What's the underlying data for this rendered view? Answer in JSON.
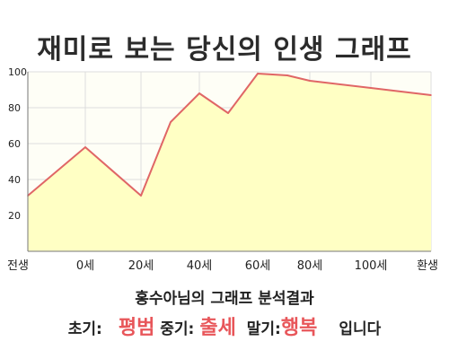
{
  "chart_data": {
    "type": "area",
    "title": "재미로 보는 당신의 인생 그래프",
    "x_tick_labels": [
      "전생",
      "0세",
      "20세",
      "40세",
      "60세",
      "80세",
      "100세",
      "환생"
    ],
    "x": [
      "전생",
      "0세",
      "20세",
      "30세",
      "40세",
      "50세",
      "60세",
      "70세",
      "80세",
      "100세",
      "환생"
    ],
    "values": [
      31,
      58,
      31,
      72,
      88,
      77,
      99,
      98,
      95,
      91,
      87
    ],
    "ylim": [
      0,
      100
    ],
    "yticks": [
      20,
      40,
      60,
      80,
      100
    ],
    "xlabel": "",
    "ylabel": "",
    "grid": true,
    "colors": {
      "line": "#e06666",
      "fill": "#ffffc4",
      "grid": "#dddddd",
      "axis": "#777777",
      "background": "#fefef6"
    }
  },
  "analysis": {
    "subtitle": "홍수아님의 그래프 분석결과",
    "early_label": "초기:",
    "early_value": "평범",
    "mid_label": "중기:",
    "mid_value": "출세",
    "late_label": "말기:",
    "late_value": "행복",
    "ending": "입니다",
    "highlight_color": "#e8565a"
  }
}
